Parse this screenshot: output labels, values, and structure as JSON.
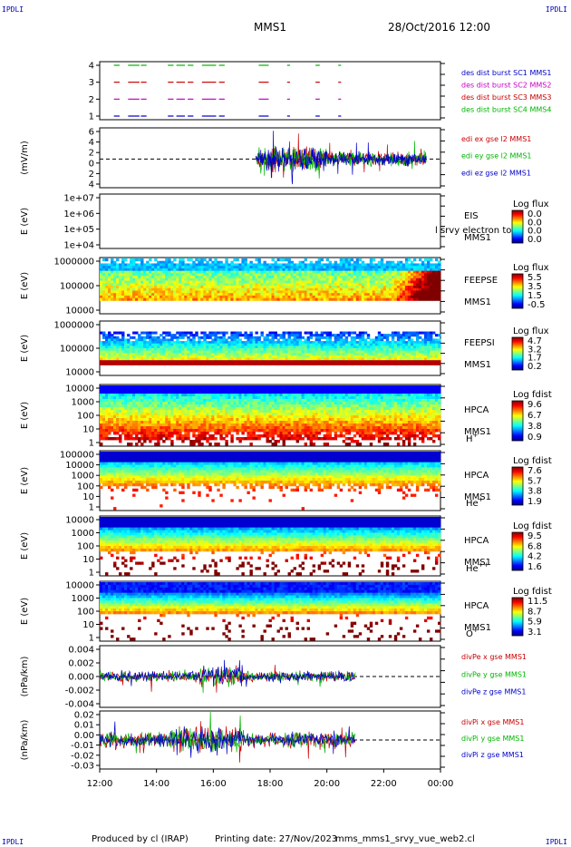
{
  "corner_label": "IPDLI",
  "header": {
    "mission": "MMS1",
    "datetime": "28/Oct/2016 12:00"
  },
  "footer": {
    "produced_by": "Produced by cl (IRAP)",
    "printing_date": "Printing date: 27/Nov/2023",
    "filename": "mms_mms1_srvy_vue_web2.cl"
  },
  "chart_data": [
    {
      "type": "line",
      "id": "burst",
      "ylim": [
        0.5,
        4.5
      ],
      "ticks": [
        "4",
        "3",
        "2",
        "1"
      ],
      "legend_placement": "right",
      "series": [
        {
          "name": "des dist burst SC1 MMS1",
          "color": "#0000c8",
          "y": 1
        },
        {
          "name": "des dist burst SC2 MMS2",
          "color": "#c800c8",
          "y": 2
        },
        {
          "name": "des dist burst SC3 MMS3",
          "color": "#c80000",
          "y": 3
        },
        {
          "name": "des dist burst SC4 MMS4",
          "color": "#00b400",
          "y": 4
        }
      ],
      "segments_hours": [
        [
          0.5,
          0.7
        ],
        [
          1.0,
          1.4
        ],
        [
          1.45,
          1.65
        ],
        [
          2.4,
          2.6
        ],
        [
          2.7,
          3.0
        ],
        [
          3.1,
          3.3
        ],
        [
          3.6,
          4.1
        ],
        [
          4.2,
          4.4
        ],
        [
          5.6,
          5.95
        ],
        [
          6.6,
          6.7
        ],
        [
          7.6,
          7.75
        ],
        [
          8.4,
          8.5
        ]
      ]
    },
    {
      "type": "line",
      "id": "edi",
      "ylabel": "(mV/m)",
      "ticks": [
        "6",
        "4",
        "2",
        "0",
        "2",
        "4"
      ],
      "grid": "dashed zero",
      "series": [
        {
          "name": "edi ex gse l2 MMS1",
          "color": "#c80000"
        },
        {
          "name": "edi ey gse l2 MMS1",
          "color": "#00b400"
        },
        {
          "name": "edi ez gse l2 MMS1",
          "color": "#0000c8"
        }
      ],
      "data_range_hours": [
        5.5,
        11.5
      ]
    },
    {
      "type": "heatmap",
      "id": "eis",
      "ylabel": "E (eV)",
      "ticks": [
        "1e+07",
        "1e+06",
        "1e+05",
        "1e+04"
      ],
      "instrument": "EIS",
      "spacecraft": "MMS1",
      "overlay_text": "l srvy electron to",
      "colorbar": {
        "title": "Log flux",
        "ticks": [
          "0.0",
          "0.0",
          "0.0",
          "0.0"
        ]
      },
      "empty": true
    },
    {
      "type": "heatmap",
      "id": "feepse",
      "ylabel": "E (eV)",
      "ticks": [
        "1000000",
        "100000",
        "10000"
      ],
      "instrument": "FEEPSE",
      "spacecraft": "MMS1",
      "colorbar": {
        "title": "Log flux",
        "ticks": [
          "5.5",
          "3.5",
          "1.5",
          "-0.5"
        ]
      }
    },
    {
      "type": "heatmap",
      "id": "feepsi",
      "ylabel": "E (eV)",
      "ticks": [
        "1000000",
        "100000",
        "10000"
      ],
      "instrument": "FEEPSI",
      "spacecraft": "MMS1",
      "colorbar": {
        "title": "Log flux",
        "ticks": [
          "4.7",
          "3.2",
          "1.7",
          "0.2"
        ]
      }
    },
    {
      "type": "heatmap",
      "id": "hpca_h",
      "ylabel": "E (eV)",
      "ticks": [
        "10000",
        "1000",
        "100",
        "10",
        "1"
      ],
      "instrument": "HPCA",
      "spacecraft": "MMS1",
      "species": "H",
      "charge": "+",
      "colorbar": {
        "title": "Log fdist",
        "ticks": [
          "9.6",
          "6.7",
          "3.8",
          "0.9"
        ]
      }
    },
    {
      "type": "heatmap",
      "id": "hpca_he",
      "ylabel": "E (eV)",
      "ticks": [
        "100000",
        "10000",
        "1000",
        "100",
        "10",
        "1"
      ],
      "instrument": "HPCA",
      "spacecraft": "MMS1",
      "species": "He",
      "charge": "+",
      "colorbar": {
        "title": "Log fdist",
        "ticks": [
          "7.6",
          "5.7",
          "3.8",
          "1.9"
        ]
      }
    },
    {
      "type": "heatmap",
      "id": "hpca_hepp",
      "ylabel": "E (eV)",
      "ticks": [
        "10000",
        "1000",
        "100",
        "10",
        "1"
      ],
      "instrument": "HPCA",
      "spacecraft": "MMS1",
      "species": "He",
      "charge": "++",
      "colorbar": {
        "title": "Log fdist",
        "ticks": [
          "9.5",
          "6.8",
          "4.2",
          "1.6"
        ]
      }
    },
    {
      "type": "heatmap",
      "id": "hpca_o",
      "ylabel": "E (eV)",
      "ticks": [
        "10000",
        "1000",
        "100",
        "10",
        "1"
      ],
      "instrument": "HPCA",
      "spacecraft": "MMS1",
      "species": "O",
      "charge": "+",
      "colorbar": {
        "title": "Log fdist",
        "ticks": [
          "11.5",
          "8.7",
          "5.9",
          "3.1"
        ]
      }
    },
    {
      "type": "line",
      "id": "divpe",
      "ylabel": "(nPa/km)",
      "ticks": [
        "0.004",
        "0.002",
        "0.000",
        "-0.002",
        "-0.004"
      ],
      "grid": "dashed zero",
      "series": [
        {
          "name": "divPe x gse MMS1",
          "color": "#c80000"
        },
        {
          "name": "divPe y gse MMS1",
          "color": "#00b400"
        },
        {
          "name": "divPe z gse MMS1",
          "color": "#0000c8"
        }
      ],
      "data_range_hours": [
        0,
        9
      ]
    },
    {
      "type": "line",
      "id": "divpi",
      "ylabel": "(nPa/km)",
      "ticks": [
        "0.02",
        "0.01",
        "0.00",
        "-0.01",
        "-0.02",
        "-0.03"
      ],
      "grid": "dashed zero",
      "series": [
        {
          "name": "divPi x gse MMS1",
          "color": "#c80000"
        },
        {
          "name": "divPi y gse MMS1",
          "color": "#00b400"
        },
        {
          "name": "divPi z gse MMS1",
          "color": "#0000c8"
        }
      ],
      "data_range_hours": [
        0,
        9
      ]
    }
  ],
  "time_axis": {
    "labels": [
      "12:00",
      "14:00",
      "16:00",
      "18:00",
      "20:00",
      "22:00",
      "00:00"
    ],
    "range_hours": [
      0,
      12
    ]
  }
}
